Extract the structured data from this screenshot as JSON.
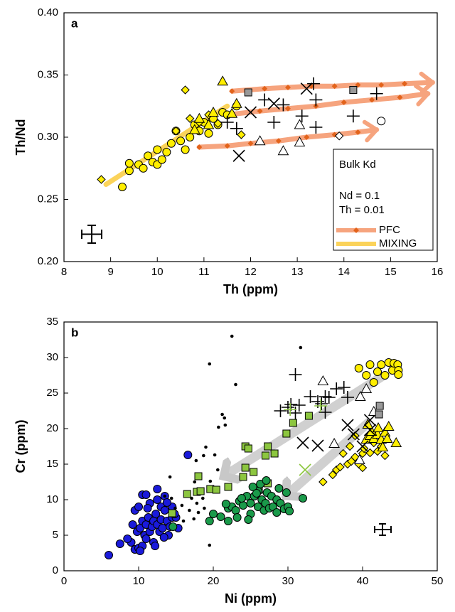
{
  "chart_data": [
    {
      "type": "scatter",
      "panel_label": "a",
      "xlabel": "Th (ppm)",
      "ylabel": "Th/Nd",
      "xlim": [
        8,
        16
      ],
      "xticks": [
        8,
        9,
        10,
        11,
        12,
        13,
        14,
        15,
        16
      ],
      "ylim": [
        0.2,
        0.4
      ],
      "yticks": [
        {
          "value": 0.2,
          "label": "0.20"
        },
        {
          "value": 0.25,
          "label": "0.25"
        },
        {
          "value": 0.3,
          "label": "0.30"
        },
        {
          "value": 0.35,
          "label": "0.35"
        },
        {
          "value": 0.4,
          "label": "0.40"
        }
      ],
      "legend": "lower right",
      "legend_title": "Bulk Kd",
      "legend_notes": [
        "Nd = 0.1",
        "Th = 0.01"
      ],
      "series": [
        {
          "name": "PFC",
          "type": "line",
          "color": "#f6a47e",
          "marker": "diamond",
          "marker_color": "#e2631b",
          "x": [
            11.6,
            12.3,
            12.8,
            13.3,
            13.8,
            14.3,
            14.8,
            15.3,
            15.9,
            null,
            11.5,
            12.2,
            12.8,
            13.4,
            14.0,
            14.6,
            15.2,
            15.8,
            null,
            10.9,
            11.5,
            12.0,
            12.6,
            13.2,
            13.8,
            14.3,
            14.7
          ],
          "values": [
            0.337,
            0.339,
            0.34,
            0.341,
            0.341,
            0.342,
            0.342,
            0.343,
            0.344,
            null,
            0.318,
            0.321,
            0.323,
            0.325,
            0.328,
            0.33,
            0.332,
            0.335,
            null,
            0.292,
            0.293,
            0.295,
            0.297,
            0.3,
            0.302,
            0.304,
            0.306
          ]
        },
        {
          "name": "MIXING",
          "type": "line",
          "color": "#fbd35a",
          "x": [
            8.9,
            11.5
          ],
          "values": [
            0.262,
            0.325
          ]
        },
        {
          "marker": "circle",
          "color": "#ffee00",
          "x": [
            9.25,
            9.4,
            9.4,
            9.6,
            9.7,
            9.8,
            9.9,
            10.0,
            10.0,
            10.1,
            10.2,
            10.3,
            10.5,
            10.6,
            10.7,
            10.8,
            10.9,
            11.0,
            11.1,
            11.2,
            11.4,
            11.5,
            10.4,
            11.3,
            11.7
          ],
          "values": [
            0.26,
            0.273,
            0.279,
            0.278,
            0.275,
            0.285,
            0.28,
            0.278,
            0.29,
            0.282,
            0.288,
            0.295,
            0.297,
            0.29,
            0.3,
            0.31,
            0.305,
            0.312,
            0.303,
            0.315,
            0.32,
            0.318,
            0.305,
            0.31,
            0.325
          ]
        },
        {
          "marker": "diamond",
          "color": "#ffee00",
          "x": [
            8.8,
            10.6,
            10.4,
            10.7,
            11.8,
            10.9,
            11.1,
            11.3
          ],
          "values": [
            0.266,
            0.338,
            0.305,
            0.315,
            0.302,
            0.312,
            0.318,
            0.311
          ]
        },
        {
          "marker": "triangle",
          "color": "#ffee00",
          "x": [
            10.8,
            11.1,
            11.4,
            11.6,
            11.2,
            11.7,
            10.9
          ],
          "values": [
            0.306,
            0.31,
            0.345,
            0.319,
            0.32,
            0.327,
            0.315
          ]
        },
        {
          "marker": "plus",
          "color": "#000000",
          "x": [
            11.5,
            11.7,
            12.3,
            12.5,
            12.7,
            13.1,
            13.35,
            13.4,
            13.4,
            14.2,
            14.7
          ],
          "values": [
            0.312,
            0.307,
            0.33,
            0.312,
            0.326,
            0.317,
            0.343,
            0.33,
            0.308,
            0.317,
            0.335
          ]
        },
        {
          "marker": "cross",
          "color": "#000000",
          "x": [
            11.75,
            12.0,
            12.5,
            13.2
          ],
          "values": [
            0.285,
            0.32,
            0.327,
            0.339
          ]
        },
        {
          "marker": "triangle",
          "color": "#ffffff",
          "x": [
            12.2,
            12.7,
            13.05,
            13.05
          ],
          "values": [
            0.297,
            0.289,
            0.296,
            0.31
          ]
        },
        {
          "marker": "square",
          "color": "#999999",
          "x": [
            11.95,
            14.2
          ],
          "values": [
            0.336,
            0.338
          ]
        },
        {
          "marker": "diamond",
          "color": "#ffffff",
          "x": [
            13.9
          ],
          "values": [
            0.301
          ]
        },
        {
          "marker": "circle",
          "color": "#ffffff",
          "x": [
            14.8
          ],
          "values": [
            0.313
          ]
        }
      ]
    },
    {
      "type": "scatter",
      "panel_label": "b",
      "xlabel": "Ni (ppm)",
      "ylabel": "Cr (ppm)",
      "xlim": [
        0,
        50
      ],
      "xticks": [
        0,
        10,
        20,
        30,
        40,
        50
      ],
      "ylim": [
        0,
        35
      ],
      "yticks": [
        0,
        5,
        10,
        15,
        20,
        25,
        30,
        35
      ],
      "series": [
        {
          "marker": "circle",
          "color": "#1a1adb",
          "x": [
            6,
            7.5,
            9,
            9.5,
            10,
            10.5,
            9.8,
            10.2,
            10.5,
            10.8,
            11,
            11,
            11.3,
            11.5,
            11.8,
            12,
            12,
            12.3,
            12.5,
            12.8,
            13,
            13,
            13.2,
            13.5,
            13.8,
            14,
            14.2,
            14.5,
            14.5,
            10.5,
            11,
            9.5,
            10,
            11.5,
            12.5,
            12.5,
            13.5,
            16.6,
            8.5,
            9.2,
            15,
            15.3,
            14.8,
            11.2,
            12.2,
            10.2,
            13.4,
            13.8
          ],
          "values": [
            2.2,
            3.8,
            4,
            3,
            3.2,
            3.5,
            5.5,
            6,
            7,
            5,
            6.5,
            4.5,
            7.5,
            5.5,
            6.2,
            7,
            4,
            8,
            6.5,
            5.5,
            7.2,
            9,
            6,
            8.5,
            7,
            5,
            6.2,
            7.5,
            9,
            10.7,
            10.7,
            8.5,
            9,
            9.5,
            10,
            11.5,
            10.5,
            16.3,
            4.5,
            6.5,
            7.5,
            6,
            8,
            8.8,
            3.5,
            2.8,
            4.7,
            9.6
          ]
        },
        {
          "marker": "dot",
          "color": "#000000",
          "x": [
            19.5,
            22.5,
            23,
            21.2,
            21.5,
            20.7,
            21.6,
            19,
            20.2,
            18.7,
            17.7,
            20.6,
            19.6,
            14.2,
            16.2,
            17.1,
            17.8,
            18.6,
            13.5,
            14.4,
            15.8,
            16.8,
            17.4,
            18,
            19.5,
            31.7,
            14.9,
            18.8,
            17.5,
            16
          ],
          "values": [
            29.1,
            33,
            26.2,
            22,
            21.5,
            20.2,
            20.5,
            17.4,
            16.3,
            16.2,
            15.5,
            14.2,
            12.6,
            13.2,
            10.6,
            10.2,
            9.5,
            10.2,
            10.5,
            10.2,
            9.2,
            8.5,
            7.3,
            8.2,
            3.6,
            31.4,
            8.8,
            8.8,
            12.5,
            7
          ]
        },
        {
          "marker": "square",
          "color": "#8cc63f",
          "x": [
            14.5,
            16.5,
            17.8,
            18.3,
            18,
            19.6,
            20.4,
            22,
            24,
            25.4,
            24.3,
            24.7,
            24.3,
            27,
            27.3,
            28.2,
            29.8,
            30.7,
            32.8,
            27.3,
            26.1
          ],
          "values": [
            8.1,
            10.8,
            11.1,
            11.2,
            13.3,
            11.5,
            11.4,
            11.8,
            13.2,
            13.9,
            17.5,
            17.2,
            14.5,
            16.2,
            17.5,
            16.5,
            19.3,
            20.8,
            21.8,
            12.3,
            11.4
          ]
        },
        {
          "marker": "circle",
          "color": "#1a9a4a",
          "x": [
            19.5,
            20,
            21,
            22,
            22.5,
            23,
            23.5,
            24,
            24.5,
            25,
            25,
            25.5,
            26,
            26,
            26.5,
            26.8,
            27,
            27.2,
            27.5,
            27.8,
            28,
            28.5,
            28.5,
            29,
            29.5,
            29.8,
            30,
            30.2,
            25.3,
            26.3,
            23.8,
            24.7,
            23.2,
            22,
            21.7,
            28.8,
            32,
            14.6,
            27.1,
            25.8
          ],
          "values": [
            7,
            8,
            7.6,
            8.8,
            9,
            8.5,
            9.8,
            9.2,
            10.5,
            9.5,
            8,
            10.5,
            9,
            11.2,
            10,
            8.5,
            9.5,
            11,
            8.8,
            10.5,
            9,
            10,
            8.2,
            9.5,
            8.7,
            11,
            9,
            8.4,
            11.8,
            12.2,
            10.2,
            7.2,
            7.5,
            7,
            9.4,
            11.6,
            10.2,
            6.2,
            12.7,
            10.9
          ]
        },
        {
          "marker": "circle",
          "color": "#ffee00",
          "x": [
            39.5,
            40.5,
            41,
            42,
            42.5,
            43,
            43.5,
            44,
            44.2,
            44.7,
            44.8,
            44.8,
            41.5
          ],
          "values": [
            28.5,
            27.5,
            29,
            28,
            29,
            27.5,
            29.3,
            28.2,
            29.2,
            29,
            28.2,
            27.6,
            26.5
          ]
        },
        {
          "marker": "diamond",
          "color": "#ffee00",
          "x": [
            36,
            36.5,
            37,
            37.4,
            38,
            38.5,
            39,
            39.5,
            40,
            40,
            41,
            41.5,
            42,
            42.5,
            43,
            34.7,
            39,
            40.2,
            38.3
          ],
          "values": [
            13.5,
            14.2,
            14.6,
            16.5,
            15,
            15.4,
            16,
            15,
            16.5,
            14.5,
            16.6,
            18,
            16.8,
            17.5,
            16.2,
            12.5,
            19,
            17.2,
            17.5
          ]
        },
        {
          "marker": "triangle",
          "color": "#ffee00",
          "x": [
            40.5,
            41,
            41.5,
            42,
            42.5,
            42.7,
            43,
            43.5,
            44.5,
            41.2,
            42.1,
            40.7,
            43.3
          ],
          "values": [
            18.5,
            19,
            18.6,
            19.2,
            18.5,
            17.4,
            19.5,
            20.3,
            18,
            19.6,
            20.1,
            20.6,
            18.6
          ]
        },
        {
          "marker": "plus",
          "color": "#000000",
          "x": [
            29,
            30,
            30.4,
            31,
            31,
            31.5,
            33,
            34,
            35,
            35.5,
            35,
            36.5,
            37.5,
            38,
            34.5
          ],
          "values": [
            22.5,
            23,
            23.4,
            22.2,
            27.6,
            23.3,
            24.5,
            23.8,
            24.5,
            24.4,
            22.3,
            25.6,
            25.8,
            24.4,
            23.5
          ]
        },
        {
          "marker": "cross",
          "color": "#000000",
          "x": [
            32,
            34,
            38,
            38.8,
            41,
            41,
            40
          ],
          "values": [
            18,
            17.6,
            20.5,
            19.2,
            21.2,
            19.8,
            17.5
          ]
        },
        {
          "marker": "triangle",
          "color": "#ffffff",
          "x": [
            34.7,
            36.2,
            39.6,
            39.7,
            40.5,
            41.5
          ],
          "values": [
            26.7,
            17.9,
            15.6,
            24.5,
            25.6,
            22.4
          ]
        },
        {
          "marker": "square",
          "color": "#999999",
          "x": [
            42.2,
            42.3
          ],
          "values": [
            22,
            23.2
          ]
        },
        {
          "marker": "cross",
          "color": "#8cc63f",
          "x": [
            32.3
          ],
          "values": [
            14.2
          ]
        },
        {
          "marker": "plus",
          "color": "#8cc63f",
          "x": [
            30.3,
            34.4
          ],
          "values": [
            22.7,
            23.2
          ]
        }
      ]
    }
  ]
}
